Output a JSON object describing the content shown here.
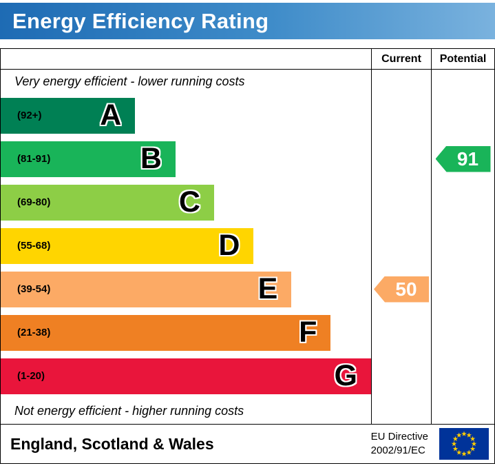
{
  "header": {
    "title": "Energy Efficiency Rating"
  },
  "columns": {
    "current_label": "Current",
    "potential_label": "Potential"
  },
  "notes": {
    "top": "Very energy efficient - lower running costs",
    "bottom": "Not energy efficient - higher running costs"
  },
  "bands": [
    {
      "letter": "A",
      "range": "(92+)",
      "color": "#008054",
      "width_pct": 36.3
    },
    {
      "letter": "B",
      "range": "(81-91)",
      "color": "#19b459",
      "width_pct": 47.2
    },
    {
      "letter": "C",
      "range": "(69-80)",
      "color": "#8dce46",
      "width_pct": 57.6
    },
    {
      "letter": "D",
      "range": "(55-68)",
      "color": "#ffd500",
      "width_pct": 68.3
    },
    {
      "letter": "E",
      "range": "(39-54)",
      "color": "#fcaa65",
      "width_pct": 78.5
    },
    {
      "letter": "F",
      "range": "(21-38)",
      "color": "#ef8023",
      "width_pct": 89.1
    },
    {
      "letter": "G",
      "range": "(1-20)",
      "color": "#e9153b",
      "width_pct": 100
    }
  ],
  "current": {
    "value": "50",
    "color": "#fcaa65",
    "band": "E"
  },
  "potential": {
    "value": "91",
    "color": "#19b459",
    "band": "B"
  },
  "footer": {
    "region": "England, Scotland & Wales",
    "directive_line1": "EU Directive",
    "directive_line2": "2002/91/EC"
  },
  "chart_data": {
    "type": "bar",
    "title": "Energy Efficiency Rating",
    "categories": [
      "A",
      "B",
      "C",
      "D",
      "E",
      "F",
      "G"
    ],
    "ranges": [
      "92+",
      "81-91",
      "69-80",
      "55-68",
      "39-54",
      "21-38",
      "1-20"
    ],
    "bar_lengths_pct": [
      36.3,
      47.2,
      57.6,
      68.3,
      78.5,
      89.1,
      100
    ],
    "colors": [
      "#008054",
      "#19b459",
      "#8dce46",
      "#ffd500",
      "#fcaa65",
      "#ef8023",
      "#e9153b"
    ],
    "current_rating": 50,
    "current_band": "E",
    "potential_rating": 91,
    "potential_band": "B",
    "top_note": "Very energy efficient - lower running costs",
    "bottom_note": "Not energy efficient - higher running costs",
    "region": "England, Scotland & Wales",
    "directive": "EU Directive 2002/91/EC",
    "legend_position": "none",
    "grid": false
  }
}
